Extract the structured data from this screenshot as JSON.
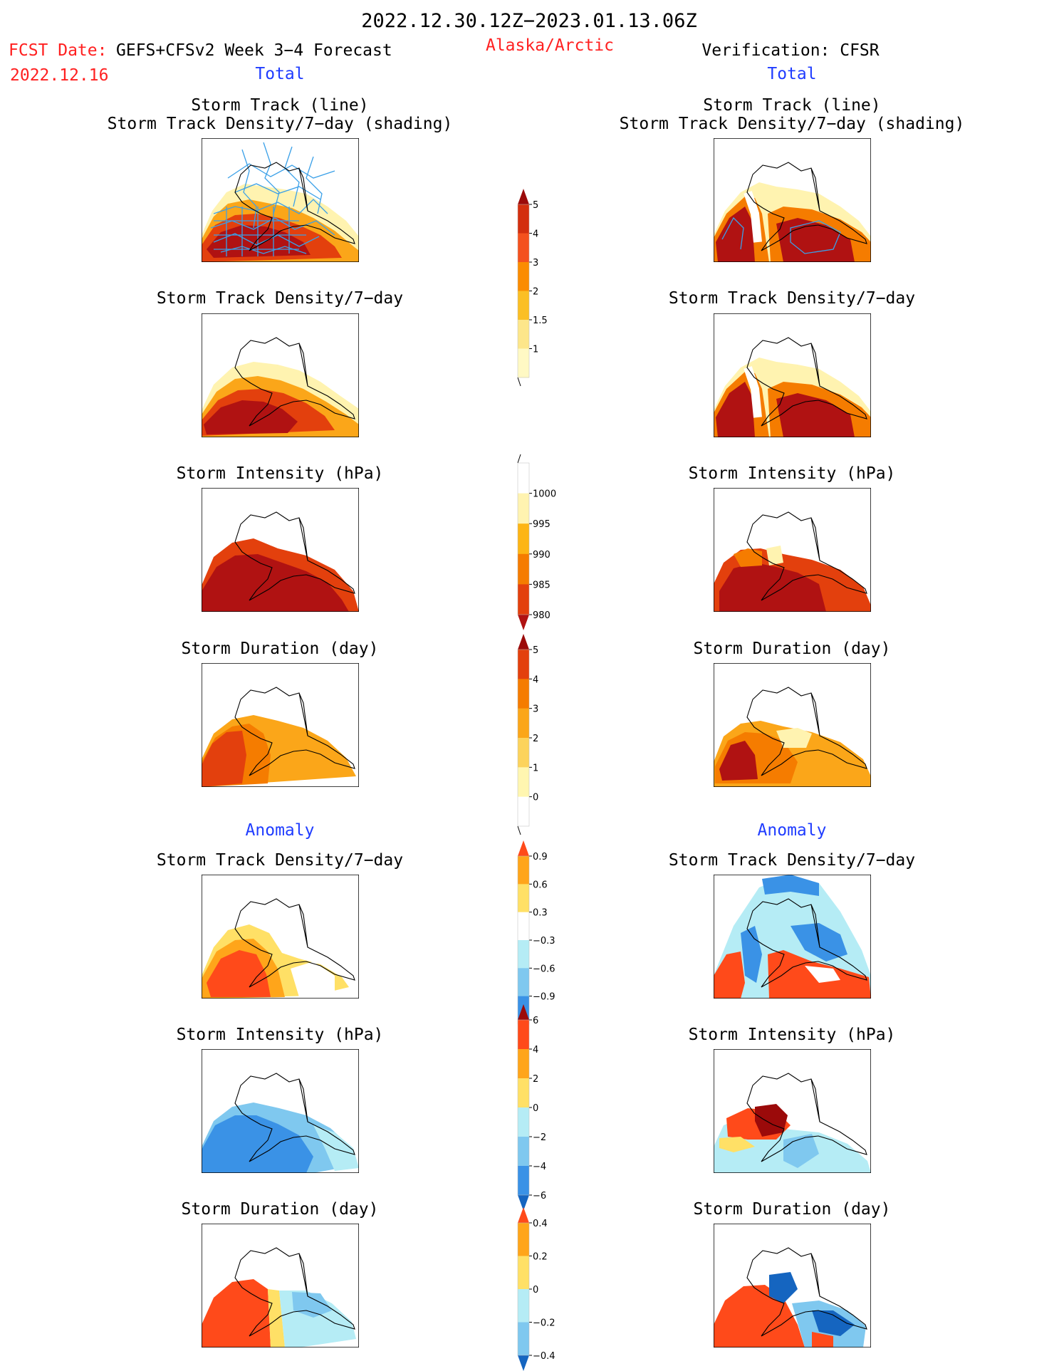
{
  "header": {
    "period": "2022.12.30.12Z−2023.01.13.06Z",
    "fcst_date_label": "FCST Date:",
    "fcst_date": "2022.12.16",
    "model_title": "GEFS+CFSv2 Week 3−4 Forecast",
    "region": "Alaska/Arctic",
    "verification": "Verification: CFSR"
  },
  "sections": {
    "total": "Total",
    "anomaly": "Anomaly"
  },
  "panel_titles": {
    "track_line": "Storm Track (line)",
    "track_shading": "Storm Track Density/7−day (shading)",
    "density": "Storm Track Density/7−day",
    "intensity": "Storm Intensity (hPa)",
    "duration": "Storm Duration (day)"
  },
  "colors": {
    "text_red": "#ff2020",
    "text_blue": "#1f3cff",
    "track_line": "#3aa0e8",
    "map_line": "#000000"
  },
  "chart_data": [
    {
      "type": "heatmap",
      "name": "density-colorbar",
      "levels": [
        "1",
        "1.5",
        "2",
        "3",
        "4",
        "5"
      ],
      "colors": [
        "#fff9c4",
        "#fde68a",
        "#fbbf24",
        "#fb8c00",
        "#f4511e",
        "#d32f0f",
        "#9b0a0a"
      ]
    },
    {
      "type": "heatmap",
      "name": "intensity-colorbar",
      "levels": [
        "1000",
        "995",
        "990",
        "985",
        "980"
      ],
      "colors": [
        "#ffffff",
        "#fff3b0",
        "#fdb515",
        "#f57c00",
        "#e3400d",
        "#b01212"
      ]
    },
    {
      "type": "heatmap",
      "name": "duration-colorbar",
      "levels": [
        "0",
        "1",
        "2",
        "3",
        "4",
        "5"
      ],
      "colors": [
        "#ffffff",
        "#fff6b0",
        "#fcd35c",
        "#fba619",
        "#f57c00",
        "#e3400d",
        "#9b0a0a"
      ]
    },
    {
      "type": "heatmap",
      "name": "density-anomaly-colorbar",
      "levels": [
        "0.9",
        "0.6",
        "0.3",
        "−0.3",
        "−0.6",
        "−0.9"
      ],
      "colors": [
        "#ff4a1a",
        "#ffa51a",
        "#ffe066",
        "#ffffff",
        "#b5ecf5",
        "#7fc8ef",
        "#3a92e6",
        "#1565c0"
      ]
    },
    {
      "type": "heatmap",
      "name": "intensity-anomaly-colorbar",
      "levels": [
        "6",
        "4",
        "2",
        "0",
        "−2",
        "−4",
        "−6"
      ],
      "colors": [
        "#9b0a0a",
        "#ff4a1a",
        "#ffa51a",
        "#ffe066",
        "#b5ecf5",
        "#7fc8ef",
        "#3a92e6",
        "#1565c0"
      ]
    },
    {
      "type": "heatmap",
      "name": "duration-anomaly-colorbar",
      "levels": [
        "0.4",
        "0.2",
        "0",
        "−0.2",
        "−0.4"
      ],
      "colors": [
        "#ff4a1a",
        "#ffa51a",
        "#ffe066",
        "#b5ecf5",
        "#7fc8ef",
        "#1565c0"
      ]
    }
  ]
}
